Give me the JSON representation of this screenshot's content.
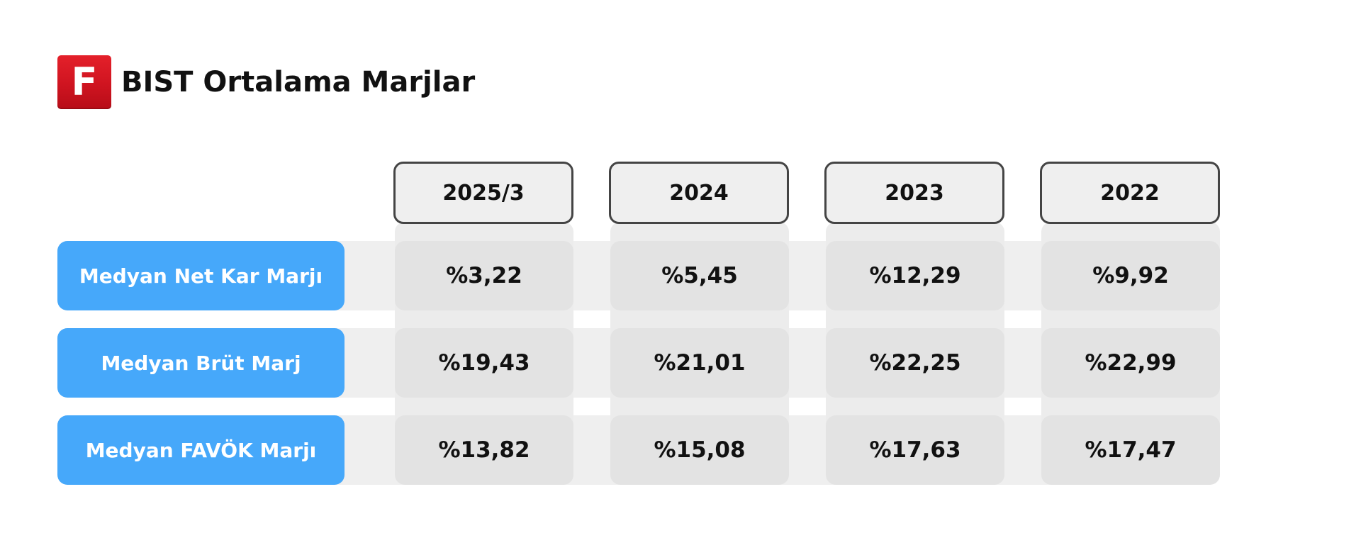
{
  "header": {
    "logo_letter": "F",
    "title": "BIST Ortalama Marjlar"
  },
  "colors": {
    "logo_red": "#d0141f",
    "row_label_blue": "#46a8fa",
    "cell_gray": "#e3e3e3",
    "band_gray": "#efefef"
  },
  "chart_data": {
    "type": "table",
    "title": "BIST Ortalama Marjlar",
    "columns": [
      "2025/3",
      "2024",
      "2023",
      "2022"
    ],
    "rows": [
      {
        "label": "Medyan Net Kar Marjı",
        "values": [
          "%3,22",
          "%5,45",
          "%12,29",
          "%9,92"
        ]
      },
      {
        "label": "Medyan Brüt Marj",
        "values": [
          "%19,43",
          "%21,01",
          "%22,25",
          "%22,99"
        ]
      },
      {
        "label": "Medyan FAVÖK Marjı",
        "values": [
          "%13,82",
          "%15,08",
          "%17,63",
          "%17,47"
        ]
      }
    ]
  }
}
